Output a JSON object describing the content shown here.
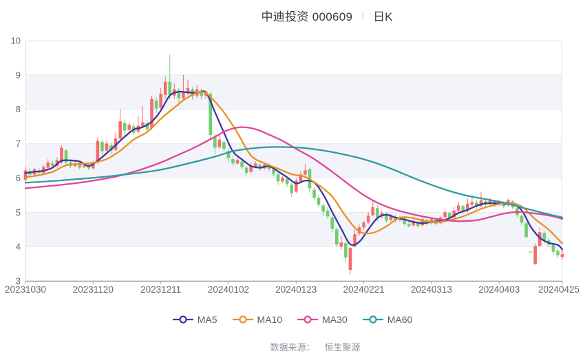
{
  "title": {
    "name": "中迪投资 000609",
    "separator": "|",
    "mode": "日K"
  },
  "legend": {
    "items": [
      {
        "label": "MA5",
        "color": "#3f35a2"
      },
      {
        "label": "MA10",
        "color": "#e8921f"
      },
      {
        "label": "MA30",
        "color": "#e0459c"
      },
      {
        "label": "MA60",
        "color": "#2f9b9e"
      }
    ]
  },
  "footer": {
    "label": "数据来源：",
    "source": "恒生聚源"
  },
  "chart_data": {
    "type": "candlestick",
    "title": "中迪投资 000609 日K",
    "xlabel": "",
    "ylabel": "",
    "ylim": [
      3,
      10
    ],
    "y_ticks": [
      3,
      4,
      5,
      6,
      7,
      8,
      9,
      10
    ],
    "shaded_bands": [
      [
        9,
        8
      ],
      [
        7,
        6
      ],
      [
        5,
        4
      ]
    ],
    "x_tick_labels": [
      "20231030",
      "20231120",
      "20231211",
      "20240102",
      "20240123",
      "20240221",
      "20240313",
      "20240403",
      "20240425"
    ],
    "x_tick_indices": [
      0,
      15,
      30,
      45,
      60,
      75,
      90,
      105,
      119
    ],
    "colors": {
      "up": "#f56c6c",
      "down": "#6fce6f",
      "band": "#f2f4f9",
      "grid": "#e4e8f1",
      "border": "#d9dde8",
      "axis": "#9aa0ad",
      "tick_text": "#686868"
    },
    "candles": [
      [
        5.95,
        6.32,
        5.85,
        6.22
      ],
      [
        6.2,
        6.28,
        6.05,
        6.1
      ],
      [
        6.1,
        6.3,
        6.08,
        6.25
      ],
      [
        6.22,
        6.3,
        6.1,
        6.15
      ],
      [
        6.15,
        6.38,
        6.12,
        6.32
      ],
      [
        6.3,
        6.55,
        6.25,
        6.45
      ],
      [
        6.42,
        6.5,
        6.28,
        6.35
      ],
      [
        6.35,
        6.6,
        6.3,
        6.52
      ],
      [
        6.45,
        6.95,
        6.4,
        6.88
      ],
      [
        6.8,
        6.85,
        6.35,
        6.45
      ],
      [
        6.45,
        6.55,
        6.28,
        6.35
      ],
      [
        6.35,
        6.5,
        6.3,
        6.42
      ],
      [
        6.4,
        6.48,
        6.25,
        6.3
      ],
      [
        6.32,
        6.45,
        6.28,
        6.38
      ],
      [
        6.36,
        6.42,
        6.22,
        6.28
      ],
      [
        6.28,
        6.5,
        6.25,
        6.45
      ],
      [
        6.45,
        7.18,
        6.4,
        7.08
      ],
      [
        7.05,
        7.1,
        6.68,
        6.78
      ],
      [
        6.8,
        7.1,
        6.75,
        7.0
      ],
      [
        6.95,
        7.02,
        6.7,
        6.8
      ],
      [
        6.82,
        7.35,
        6.78,
        7.15
      ],
      [
        7.15,
        8.0,
        7.08,
        7.65
      ],
      [
        7.6,
        7.7,
        7.2,
        7.38
      ],
      [
        7.4,
        7.6,
        7.3,
        7.55
      ],
      [
        7.5,
        7.58,
        7.25,
        7.32
      ],
      [
        7.35,
        7.8,
        7.3,
        7.52
      ],
      [
        7.5,
        8.1,
        7.45,
        7.62
      ],
      [
        7.6,
        7.7,
        7.35,
        7.42
      ],
      [
        7.45,
        8.4,
        7.4,
        8.3
      ],
      [
        8.25,
        8.35,
        7.9,
        8.02
      ],
      [
        8.05,
        8.62,
        8.0,
        8.45
      ],
      [
        8.42,
        8.95,
        8.3,
        8.8
      ],
      [
        8.8,
        9.6,
        8.3,
        8.42
      ],
      [
        8.4,
        8.75,
        8.3,
        8.58
      ],
      [
        8.55,
        8.62,
        8.1,
        8.32
      ],
      [
        8.32,
        9.0,
        8.25,
        8.52
      ],
      [
        8.5,
        8.85,
        8.4,
        8.62
      ],
      [
        8.58,
        8.65,
        8.28,
        8.38
      ],
      [
        8.4,
        8.7,
        8.32,
        8.58
      ],
      [
        8.55,
        8.6,
        8.28,
        8.38
      ],
      [
        8.4,
        8.55,
        8.3,
        8.5
      ],
      [
        8.45,
        8.5,
        7.1,
        7.25
      ],
      [
        7.2,
        7.3,
        6.7,
        6.88
      ],
      [
        6.9,
        7.28,
        6.85,
        7.12
      ],
      [
        7.05,
        7.12,
        6.78,
        6.85
      ],
      [
        6.78,
        6.85,
        6.45,
        6.58
      ],
      [
        6.55,
        6.65,
        6.35,
        6.42
      ],
      [
        6.42,
        6.58,
        6.38,
        6.52
      ],
      [
        6.48,
        6.52,
        6.25,
        6.32
      ],
      [
        6.3,
        6.35,
        6.08,
        6.15
      ],
      [
        6.18,
        6.45,
        6.15,
        6.36
      ],
      [
        6.32,
        6.48,
        6.28,
        6.42
      ],
      [
        6.38,
        6.45,
        6.2,
        6.26
      ],
      [
        6.28,
        6.45,
        6.25,
        6.4
      ],
      [
        6.36,
        6.42,
        6.2,
        6.26
      ],
      [
        6.25,
        6.3,
        6.05,
        6.12
      ],
      [
        6.1,
        6.15,
        5.8,
        5.9
      ],
      [
        5.9,
        6.05,
        5.85,
        6.0
      ],
      [
        5.98,
        6.02,
        5.75,
        5.82
      ],
      [
        5.8,
        5.85,
        5.45,
        5.56
      ],
      [
        5.6,
        6.0,
        5.55,
        5.92
      ],
      [
        5.9,
        6.2,
        5.85,
        6.1
      ],
      [
        6.1,
        6.4,
        6.05,
        6.22
      ],
      [
        6.25,
        6.3,
        5.6,
        5.7
      ],
      [
        5.65,
        5.72,
        5.35,
        5.42
      ],
      [
        5.42,
        5.5,
        5.15,
        5.22
      ],
      [
        5.2,
        5.28,
        4.9,
        5.02
      ],
      [
        5.05,
        5.15,
        4.8,
        4.88
      ],
      [
        4.85,
        4.92,
        4.42,
        4.52
      ],
      [
        4.5,
        4.55,
        3.98,
        4.06
      ],
      [
        4.0,
        4.32,
        3.9,
        4.12
      ],
      [
        4.1,
        4.15,
        3.55,
        3.68
      ],
      [
        3.32,
        4.0,
        3.2,
        3.96
      ],
      [
        4.0,
        4.5,
        3.98,
        4.36
      ],
      [
        4.38,
        4.65,
        4.32,
        4.56
      ],
      [
        4.56,
        4.75,
        4.48,
        4.7
      ],
      [
        4.7,
        5.0,
        4.65,
        4.9
      ],
      [
        4.92,
        5.35,
        4.88,
        5.15
      ],
      [
        5.12,
        5.2,
        4.75,
        4.86
      ],
      [
        4.88,
        5.05,
        4.82,
        4.98
      ],
      [
        4.95,
        5.0,
        4.7,
        4.76
      ],
      [
        4.78,
        4.95,
        4.72,
        4.9
      ],
      [
        4.86,
        4.92,
        4.7,
        4.76
      ],
      [
        4.78,
        4.9,
        4.72,
        4.85
      ],
      [
        4.82,
        4.86,
        4.62,
        4.66
      ],
      [
        4.66,
        4.75,
        4.56,
        4.6
      ],
      [
        4.62,
        4.8,
        4.58,
        4.75
      ],
      [
        4.72,
        4.78,
        4.55,
        4.6
      ],
      [
        4.62,
        4.9,
        4.58,
        4.8
      ],
      [
        4.78,
        4.82,
        4.6,
        4.66
      ],
      [
        4.68,
        4.85,
        4.64,
        4.8
      ],
      [
        4.78,
        4.82,
        4.6,
        4.66
      ],
      [
        4.68,
        4.88,
        4.64,
        4.85
      ],
      [
        4.86,
        5.1,
        4.82,
        5.0
      ],
      [
        4.98,
        5.02,
        4.75,
        4.82
      ],
      [
        4.85,
        5.15,
        4.8,
        5.05
      ],
      [
        5.05,
        5.3,
        5.0,
        5.2
      ],
      [
        5.18,
        5.22,
        4.95,
        5.02
      ],
      [
        5.05,
        5.4,
        5.0,
        5.25
      ],
      [
        5.22,
        5.5,
        5.18,
        5.3
      ],
      [
        5.28,
        5.35,
        5.1,
        5.16
      ],
      [
        5.18,
        5.6,
        5.15,
        5.35
      ],
      [
        5.32,
        5.38,
        5.15,
        5.22
      ],
      [
        5.25,
        5.42,
        5.2,
        5.35
      ],
      [
        5.32,
        5.36,
        5.15,
        5.2
      ],
      [
        5.22,
        5.35,
        5.18,
        5.3
      ],
      [
        5.28,
        5.32,
        5.12,
        5.18
      ],
      [
        5.2,
        5.4,
        5.16,
        5.35
      ],
      [
        5.32,
        5.36,
        5.08,
        5.14
      ],
      [
        5.12,
        5.16,
        4.85,
        4.92
      ],
      [
        4.9,
        4.95,
        4.62,
        4.7
      ],
      [
        4.68,
        4.72,
        4.25,
        4.28
      ],
      [
        3.86,
        3.86,
        3.86,
        3.86
      ],
      [
        3.5,
        4.1,
        3.46,
        4.02
      ],
      [
        4.02,
        4.55,
        3.98,
        4.42
      ],
      [
        4.4,
        4.46,
        4.1,
        4.18
      ],
      [
        4.18,
        4.25,
        4.0,
        4.06
      ],
      [
        4.08,
        4.12,
        3.76,
        3.85
      ],
      [
        3.88,
        3.92,
        3.68,
        3.75
      ],
      [
        3.7,
        3.9,
        3.62,
        3.78
      ]
    ],
    "ma_series": [
      {
        "name": "MA5",
        "color": "#3f35a2",
        "points": [
          [
            0,
            6.14
          ],
          [
            2,
            6.18
          ],
          [
            4,
            6.21
          ],
          [
            6,
            6.3
          ],
          [
            8,
            6.5
          ],
          [
            10,
            6.51
          ],
          [
            12,
            6.48
          ],
          [
            14,
            6.35
          ],
          [
            16,
            6.5
          ],
          [
            18,
            6.72
          ],
          [
            20,
            6.96
          ],
          [
            22,
            7.2
          ],
          [
            24,
            7.41
          ],
          [
            26,
            7.48
          ],
          [
            28,
            7.64
          ],
          [
            30,
            7.96
          ],
          [
            32,
            8.4
          ],
          [
            34,
            8.51
          ],
          [
            36,
            8.49
          ],
          [
            38,
            8.48
          ],
          [
            40,
            8.49
          ],
          [
            42,
            7.92
          ],
          [
            44,
            7.32
          ],
          [
            46,
            6.77
          ],
          [
            48,
            6.54
          ],
          [
            50,
            6.35
          ],
          [
            52,
            6.3
          ],
          [
            54,
            6.34
          ],
          [
            56,
            6.19
          ],
          [
            58,
            6.02
          ],
          [
            60,
            5.84
          ],
          [
            62,
            5.92
          ],
          [
            64,
            5.87
          ],
          [
            66,
            5.52
          ],
          [
            68,
            5.01
          ],
          [
            70,
            4.52
          ],
          [
            72,
            4.07
          ],
          [
            74,
            4.14
          ],
          [
            76,
            4.5
          ],
          [
            78,
            4.83
          ],
          [
            80,
            4.93
          ],
          [
            82,
            4.85
          ],
          [
            84,
            4.79
          ],
          [
            86,
            4.72
          ],
          [
            88,
            4.68
          ],
          [
            90,
            4.72
          ],
          [
            92,
            4.75
          ],
          [
            94,
            4.83
          ],
          [
            96,
            4.98
          ],
          [
            98,
            5.07
          ],
          [
            100,
            5.19
          ],
          [
            102,
            5.26
          ],
          [
            104,
            5.26
          ],
          [
            106,
            5.25
          ],
          [
            108,
            5.23
          ],
          [
            110,
            5.06
          ],
          [
            112,
            4.58
          ],
          [
            114,
            4.26
          ],
          [
            116,
            4.11
          ],
          [
            118,
            4.05
          ],
          [
            119,
            3.92
          ]
        ]
      },
      {
        "name": "MA10",
        "color": "#e8921f",
        "points": [
          [
            0,
            6.02
          ],
          [
            3,
            6.08
          ],
          [
            6,
            6.18
          ],
          [
            9,
            6.37
          ],
          [
            12,
            6.41
          ],
          [
            15,
            6.44
          ],
          [
            18,
            6.55
          ],
          [
            21,
            6.79
          ],
          [
            24,
            7.12
          ],
          [
            27,
            7.34
          ],
          [
            30,
            7.72
          ],
          [
            33,
            8.05
          ],
          [
            36,
            8.35
          ],
          [
            39,
            8.51
          ],
          [
            41,
            8.36
          ],
          [
            44,
            7.91
          ],
          [
            47,
            7.31
          ],
          [
            50,
            6.65
          ],
          [
            53,
            6.43
          ],
          [
            56,
            6.27
          ],
          [
            59,
            6.11
          ],
          [
            62,
            6.03
          ],
          [
            65,
            5.79
          ],
          [
            68,
            5.46
          ],
          [
            71,
            4.88
          ],
          [
            74,
            4.44
          ],
          [
            77,
            4.4
          ],
          [
            80,
            4.59
          ],
          [
            83,
            4.84
          ],
          [
            86,
            4.83
          ],
          [
            89,
            4.73
          ],
          [
            92,
            4.72
          ],
          [
            95,
            4.8
          ],
          [
            98,
            4.93
          ],
          [
            101,
            5.1
          ],
          [
            104,
            5.21
          ],
          [
            107,
            5.27
          ],
          [
            110,
            5.17
          ],
          [
            113,
            4.8
          ],
          [
            116,
            4.49
          ],
          [
            119,
            4.09
          ]
        ]
      },
      {
        "name": "MA30",
        "color": "#e0459c",
        "points": [
          [
            0,
            5.7
          ],
          [
            5,
            5.76
          ],
          [
            10,
            5.83
          ],
          [
            15,
            5.92
          ],
          [
            20,
            6.04
          ],
          [
            25,
            6.22
          ],
          [
            30,
            6.45
          ],
          [
            34,
            6.68
          ],
          [
            38,
            6.92
          ],
          [
            42,
            7.2
          ],
          [
            45,
            7.4
          ],
          [
            48,
            7.48
          ],
          [
            51,
            7.42
          ],
          [
            54,
            7.26
          ],
          [
            57,
            7.08
          ],
          [
            60,
            6.85
          ],
          [
            64,
            6.55
          ],
          [
            68,
            6.18
          ],
          [
            72,
            5.78
          ],
          [
            75,
            5.5
          ],
          [
            78,
            5.28
          ],
          [
            81,
            5.12
          ],
          [
            84,
            5.0
          ],
          [
            88,
            4.88
          ],
          [
            92,
            4.79
          ],
          [
            96,
            4.74
          ],
          [
            100,
            4.77
          ],
          [
            103,
            4.86
          ],
          [
            106,
            4.96
          ],
          [
            109,
            5.01
          ],
          [
            112,
            4.98
          ],
          [
            115,
            4.93
          ],
          [
            117,
            4.88
          ],
          [
            119,
            4.81
          ]
        ]
      },
      {
        "name": "MA60",
        "color": "#2f9b9e",
        "points": [
          [
            0,
            5.86
          ],
          [
            6,
            5.91
          ],
          [
            12,
            5.97
          ],
          [
            18,
            6.04
          ],
          [
            24,
            6.13
          ],
          [
            30,
            6.24
          ],
          [
            36,
            6.42
          ],
          [
            42,
            6.62
          ],
          [
            46,
            6.78
          ],
          [
            50,
            6.86
          ],
          [
            54,
            6.9
          ],
          [
            58,
            6.9
          ],
          [
            62,
            6.87
          ],
          [
            66,
            6.8
          ],
          [
            70,
            6.7
          ],
          [
            74,
            6.58
          ],
          [
            78,
            6.42
          ],
          [
            82,
            6.22
          ],
          [
            86,
            6.0
          ],
          [
            90,
            5.8
          ],
          [
            94,
            5.62
          ],
          [
            98,
            5.48
          ],
          [
            102,
            5.38
          ],
          [
            106,
            5.28
          ],
          [
            110,
            5.14
          ],
          [
            113,
            5.04
          ],
          [
            116,
            4.94
          ],
          [
            119,
            4.85
          ]
        ]
      }
    ]
  }
}
